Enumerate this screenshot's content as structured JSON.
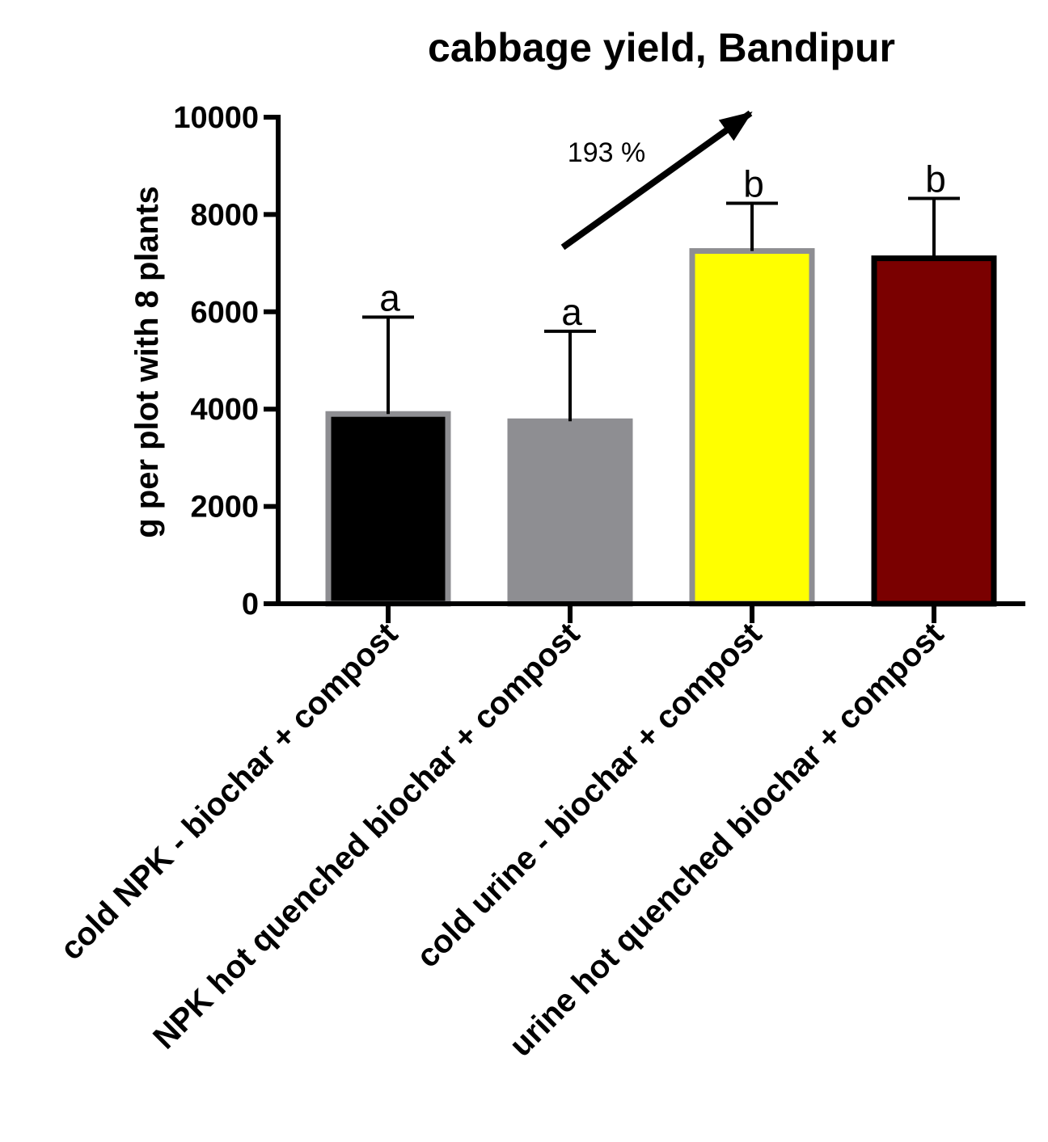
{
  "chart_data": {
    "type": "bar",
    "title": "cabbage yield, Bandipur",
    "xlabel": "",
    "ylabel": "g per plot with 8 plants",
    "ylim": [
      0,
      10000
    ],
    "yticks": [
      "0",
      "2000",
      "4000",
      "6000",
      "8000",
      "10000"
    ],
    "categories": [
      "cold NPK - biochar + compost",
      "NPK hot quenched biochar + compost",
      "cold urine - biochar + compost",
      "urine hot quenched biochar + compost"
    ],
    "values": [
      3900,
      3750,
      7250,
      7100
    ],
    "errors": [
      1990,
      1850,
      980,
      1230
    ],
    "significance": [
      "a",
      "a",
      "b",
      "b"
    ],
    "bar_colors": [
      "#000000",
      "#8e8e92",
      "#ffff00",
      "#7a0000"
    ],
    "bar_edge_colors": [
      "#8e8e92",
      "#8e8e92",
      "#8e8e92",
      "#000000"
    ],
    "annotation": "193 %",
    "grid": false,
    "legend": "none"
  }
}
